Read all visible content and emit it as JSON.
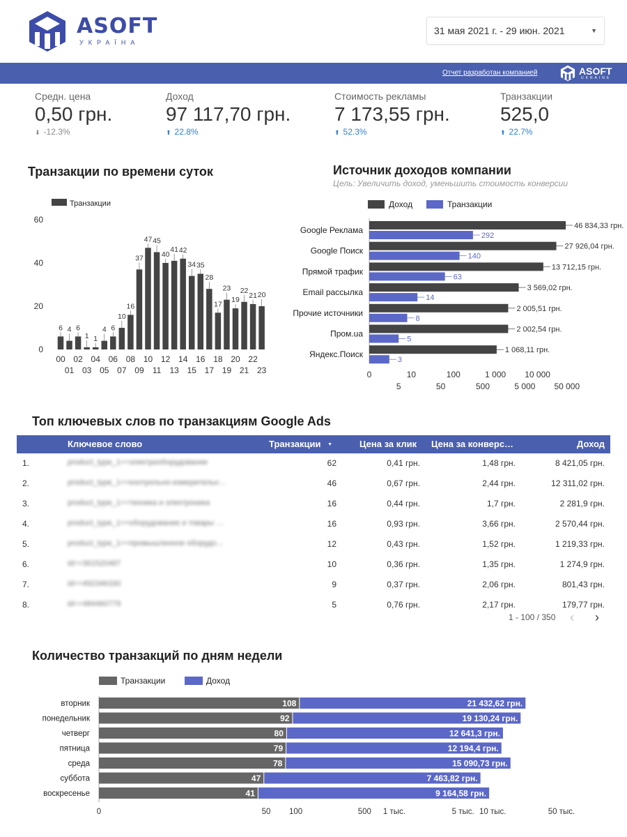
{
  "header": {
    "logo_name": "ASOFT",
    "logo_sub": "УКРАЇНА",
    "date_range": "31 мая 2021 г. - 29 июн. 2021",
    "made_by": "Отчет разработан компанией",
    "made_by_logo": "ASOFT",
    "made_by_logo_sub": "UKRAINE"
  },
  "kpis": [
    {
      "label": "Средн. цена",
      "value": "0,50 грн.",
      "change": "-12.3%",
      "dir": "down"
    },
    {
      "label": "Доход",
      "value": "97 117,70 грн.",
      "change": "22.8%",
      "dir": "up"
    },
    {
      "label": "Стоимость рекламы",
      "value": "7 173,55 грн.",
      "change": "52.3%",
      "dir": "up"
    },
    {
      "label": "Транзакции",
      "value": "525,0",
      "change": "22.7%",
      "dir": "up"
    }
  ],
  "hour_chart": {
    "title": "Транзакции по времени суток",
    "chart_data": {
      "type": "bar",
      "legend": "Транзакции",
      "categories": [
        "00",
        "01",
        "02",
        "03",
        "04",
        "05",
        "06",
        "07",
        "08",
        "09",
        "10",
        "11",
        "12",
        "13",
        "14",
        "15",
        "16",
        "17",
        "18",
        "19",
        "20",
        "21",
        "22",
        "23"
      ],
      "values": [
        6,
        4,
        6,
        1,
        1,
        4,
        6,
        10,
        16,
        37,
        47,
        45,
        40,
        41,
        42,
        34,
        35,
        28,
        17,
        23,
        19,
        22,
        21,
        20
      ],
      "y_ticks": [
        "0",
        "20",
        "40",
        "60"
      ],
      "ylim": [
        0,
        60
      ],
      "color": "#444444"
    }
  },
  "source_chart": {
    "title": "Источник доходов компании",
    "subtitle": "Цель: Увеличить доход, уменьшить стоимость конверсии",
    "chart_data": {
      "type": "bar",
      "orientation": "horizontal",
      "scale": "log",
      "categories": [
        "Google Реклама",
        "Google Поиск",
        "Прямой трафик",
        "Email рассылка",
        "Прочие источники",
        "Пром.ua",
        "Яндекс.Поиск"
      ],
      "series": [
        {
          "name": "Доход",
          "color": "#444444",
          "values": [
            46834.33,
            27926.04,
            13712.15,
            3569.02,
            2005.51,
            2002.54,
            1068.11
          ],
          "labels": [
            "46 834,33 грн.",
            "27 926,04 грн.",
            "13 712,15 грн.",
            "3 569,02 грн.",
            "2 005,51 грн.",
            "2 002,54 грн.",
            "1 068,11 грн."
          ]
        },
        {
          "name": "Транзакции",
          "color": "#5b68c7",
          "values": [
            292,
            140,
            63,
            14,
            8,
            5,
            3
          ],
          "labels": [
            "292",
            "140",
            "63",
            "14",
            "8",
            "5",
            "3"
          ]
        }
      ],
      "x_ticks_top": [
        {
          "value": 1,
          "label": "0"
        },
        {
          "value": 10,
          "label": "10"
        },
        {
          "value": 100,
          "label": "100"
        },
        {
          "value": 1000,
          "label": "1 000"
        },
        {
          "value": 10000,
          "label": "10 000"
        }
      ],
      "x_ticks_bottom": [
        {
          "value": 5,
          "label": "5"
        },
        {
          "value": 50,
          "label": "50"
        },
        {
          "value": 500,
          "label": "500"
        },
        {
          "value": 5000,
          "label": "5 000"
        },
        {
          "value": 50000,
          "label": "50 000"
        }
      ]
    }
  },
  "keywords_table": {
    "title": "Топ ключевых слов по транзакциям Google Ads",
    "columns": [
      "Ключевое слово",
      "Транзакции",
      "Цена за клик",
      "Цена за конверс…",
      "Доход"
    ],
    "sort_indicator": "▼",
    "rows": [
      {
        "n": "1.",
        "kw": "product_type_1==электрооборудование",
        "tr": "62",
        "cpc": "0,41 грн.",
        "cpa": "1,48 грн.",
        "rev": "8 421,05 грн."
      },
      {
        "n": "2.",
        "kw": "product_type_1==контрольно-измерительн…",
        "tr": "46",
        "cpc": "0,67 грн.",
        "cpa": "2,44 грн.",
        "rev": "12 311,02 грн."
      },
      {
        "n": "3.",
        "kw": "product_type_1==техника и электроника",
        "tr": "16",
        "cpc": "0,44 грн.",
        "cpa": "1,7 грн.",
        "rev": "2 281,9 грн."
      },
      {
        "n": "4.",
        "kw": "product_type_1==оборудование и товары …",
        "tr": "16",
        "cpc": "0,93 грн.",
        "cpa": "3,66 грн.",
        "rev": "2 570,44 грн."
      },
      {
        "n": "5.",
        "kw": "product_type_1==промышленное оборудо…",
        "tr": "12",
        "cpc": "0,43 грн.",
        "cpa": "1,52 грн.",
        "rev": "1 219,33 грн."
      },
      {
        "n": "6.",
        "kw": "id==361520487",
        "tr": "10",
        "cpc": "0,36 грн.",
        "cpa": "1,35 грн.",
        "rev": "1 274,9 грн."
      },
      {
        "n": "7.",
        "kw": "id==492346330",
        "tr": "9",
        "cpc": "0,37 грн.",
        "cpa": "2,06 грн.",
        "rev": "801,43 грн."
      },
      {
        "n": "8.",
        "kw": "id==484460779",
        "tr": "5",
        "cpc": "0,76 грн.",
        "cpa": "2,17 грн.",
        "rev": "179,77 грн."
      }
    ],
    "pager": "1 - 100 / 350",
    "prev_icon": "chevron-left-icon",
    "next_icon": "chevron-right-icon"
  },
  "weekday_chart": {
    "title": "Количество транзакций по дням недели",
    "chart_data": {
      "type": "bar",
      "orientation": "horizontal",
      "stacked": true,
      "scale": "log",
      "categories": [
        "вторник",
        "понедельник",
        "четверг",
        "пятница",
        "среда",
        "суббота",
        "воскресенье"
      ],
      "series": [
        {
          "name": "Транзакции",
          "color": "#666666",
          "values": [
            108,
            92,
            80,
            79,
            78,
            47,
            41
          ],
          "labels": [
            "108",
            "92",
            "80",
            "79",
            "78",
            "47",
            "41"
          ]
        },
        {
          "name": "Доход",
          "color": "#5b68c7",
          "values": [
            21432.62,
            19130.24,
            12641.3,
            12194.4,
            15090.73,
            7463.82,
            9164.58
          ],
          "labels": [
            "21 432,62 грн.",
            "19 130,24 грн.",
            "12 641,3 грн.",
            "12 194,4 грн.",
            "15 090,73 грн.",
            "7 463,82 грн.",
            "9 164,58 грн."
          ]
        }
      ],
      "x_ticks": [
        {
          "value": 1,
          "label": "0"
        },
        {
          "value": 50,
          "label": "50"
        },
        {
          "value": 100,
          "label": "100"
        },
        {
          "value": 500,
          "label": "500"
        },
        {
          "value": 1000,
          "label": "1 тыс."
        },
        {
          "value": 5000,
          "label": "5 тыс."
        },
        {
          "value": 10000,
          "label": "10 тыс."
        },
        {
          "value": 50000,
          "label": "50 тыс."
        }
      ]
    }
  }
}
